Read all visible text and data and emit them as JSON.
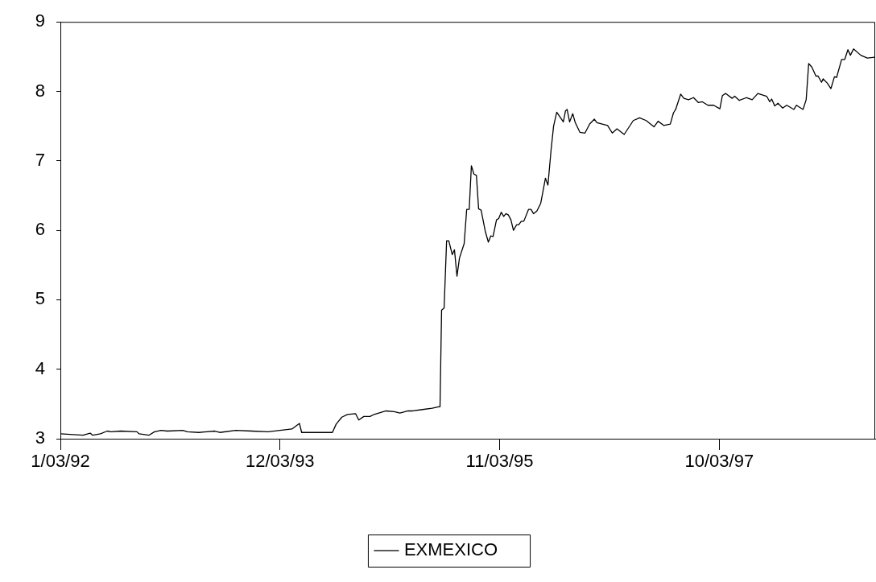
{
  "chart_data": {
    "type": "line",
    "x": [
      "1992-01-03",
      "1992-03-15",
      "1992-04-07",
      "1992-04-15",
      "1992-05-10",
      "1992-05-31",
      "1992-06-13",
      "1992-07-13",
      "1992-09-03",
      "1992-09-10",
      "1992-10-11",
      "1992-10-29",
      "1992-11-19",
      "1992-12-09",
      "1993-01-27",
      "1993-02-11",
      "1993-03-19",
      "1993-05-09",
      "1993-05-25",
      "1993-07-15",
      "1993-09-04",
      "1993-10-26",
      "1994-01-10",
      "1994-02-03",
      "1994-02-10",
      "1994-05-19",
      "1994-05-31",
      "1994-06-18",
      "1994-07-06",
      "1994-08-01",
      "1994-08-11",
      "1994-08-27",
      "1994-09-16",
      "1994-09-29",
      "1994-11-06",
      "1994-12-02",
      "1994-12-20",
      "1995-01-15",
      "1995-01-30",
      "1995-03-02",
      "1995-04-02",
      "1995-04-22",
      "1995-04-27",
      "1995-05-02",
      "1995-05-10",
      "1995-05-18",
      "1995-05-25",
      "1995-06-05",
      "1995-06-12",
      "1995-06-20",
      "1995-06-28",
      "1995-07-13",
      "1995-07-21",
      "1995-07-29",
      "1995-08-05",
      "1995-08-13",
      "1995-08-21",
      "1995-08-28",
      "1995-09-05",
      "1995-09-18",
      "1995-09-28",
      "1995-10-06",
      "1995-10-13",
      "1995-10-24",
      "1995-10-31",
      "1995-11-08",
      "1995-11-16",
      "1995-11-23",
      "1995-12-01",
      "1995-12-09",
      "1995-12-17",
      "1995-12-27",
      "1996-01-03",
      "1996-01-11",
      "1996-01-19",
      "1996-02-03",
      "1996-02-11",
      "1996-02-19",
      "1996-03-01",
      "1996-03-13",
      "1996-03-28",
      "1996-04-05",
      "1996-04-15",
      "1996-04-23",
      "1996-05-03",
      "1996-05-24",
      "1996-05-31",
      "1996-06-05",
      "1996-06-13",
      "1996-06-23",
      "1996-07-01",
      "1996-07-16",
      "1996-08-01",
      "1996-08-16",
      "1996-08-31",
      "1996-09-08",
      "1996-10-12",
      "1996-10-27",
      "1996-11-11",
      "1996-12-04",
      "1997-01-02",
      "1997-01-22",
      "1997-02-12",
      "1997-03-09",
      "1997-03-22",
      "1997-04-09",
      "1997-04-30",
      "1997-05-10",
      "1997-05-17",
      "1997-06-02",
      "1997-06-12",
      "1997-06-27",
      "1997-07-13",
      "1997-07-28",
      "1997-08-10",
      "1997-08-28",
      "1997-09-15",
      "1997-10-05",
      "1997-10-13",
      "1997-10-23",
      "1997-11-13",
      "1997-11-21",
      "1997-12-06",
      "1997-12-29",
      "1998-01-16",
      "1998-02-03",
      "1998-03-03",
      "1998-03-13",
      "1998-03-19",
      "1998-03-29",
      "1998-04-08",
      "1998-04-23",
      "1998-05-06",
      "1998-05-29",
      "1998-06-06",
      "1998-06-27",
      "1998-07-07",
      "1998-07-15",
      "1998-07-25",
      "1998-08-07",
      "1998-08-14",
      "1998-08-25",
      "1998-08-30",
      "1998-09-12",
      "1998-09-24",
      "1998-10-05",
      "1998-10-12",
      "1998-10-28",
      "1998-11-07",
      "1998-11-17",
      "1998-11-25",
      "1998-12-05",
      "1998-12-28",
      "1999-01-18",
      "1999-02-10"
    ],
    "series": [
      {
        "name": "EXMEXICO",
        "color": "#000000",
        "values": [
          3.07,
          3.05,
          3.08,
          3.05,
          3.07,
          3.11,
          3.1,
          3.11,
          3.1,
          3.07,
          3.05,
          3.1,
          3.12,
          3.11,
          3.12,
          3.1,
          3.09,
          3.11,
          3.09,
          3.12,
          3.11,
          3.1,
          3.14,
          3.22,
          3.09,
          3.09,
          3.21,
          3.31,
          3.35,
          3.36,
          3.27,
          3.32,
          3.32,
          3.35,
          3.4,
          3.39,
          3.37,
          3.4,
          3.4,
          3.42,
          3.44,
          3.46,
          3.46,
          4.85,
          4.88,
          5.85,
          5.85,
          5.65,
          5.72,
          5.34,
          5.6,
          5.81,
          6.3,
          6.3,
          6.93,
          6.81,
          6.79,
          6.31,
          6.29,
          5.99,
          5.83,
          5.92,
          5.91,
          6.15,
          6.17,
          6.26,
          6.2,
          6.24,
          6.22,
          6.15,
          6.0,
          6.08,
          6.08,
          6.13,
          6.13,
          6.3,
          6.3,
          6.24,
          6.28,
          6.39,
          6.75,
          6.65,
          7.16,
          7.5,
          7.7,
          7.56,
          7.72,
          7.74,
          7.56,
          7.68,
          7.55,
          7.41,
          7.4,
          7.53,
          7.6,
          7.55,
          7.51,
          7.4,
          7.46,
          7.38,
          7.58,
          7.62,
          7.58,
          7.49,
          7.57,
          7.51,
          7.53,
          7.69,
          7.74,
          7.96,
          7.9,
          7.88,
          7.91,
          7.84,
          7.85,
          7.8,
          7.8,
          7.75,
          7.94,
          7.97,
          7.9,
          7.93,
          7.87,
          7.91,
          7.88,
          7.97,
          7.93,
          7.85,
          7.89,
          7.79,
          7.83,
          7.76,
          7.8,
          7.74,
          7.8,
          7.74,
          7.88,
          8.4,
          8.35,
          8.22,
          8.22,
          8.13,
          8.18,
          8.12,
          8.04,
          8.21,
          8.2,
          8.46,
          8.46,
          8.6,
          8.52,
          8.61,
          8.52,
          8.48,
          8.49
        ]
      }
    ],
    "xlim": [
      "1992-01-03",
      "1999-02-12"
    ],
    "xticks": [
      {
        "value": "1992-01-03",
        "label": "1/03/92"
      },
      {
        "value": "1993-12-03",
        "label": "12/03/93"
      },
      {
        "value": "1995-11-03",
        "label": "11/03/95"
      },
      {
        "value": "1997-10-03",
        "label": "10/03/97"
      }
    ],
    "ylim": [
      3,
      9
    ],
    "yticks": [
      3,
      4,
      5,
      6,
      7,
      8,
      9
    ],
    "grid": false,
    "legend": "bottom",
    "marker": "none",
    "line_style": "solid"
  }
}
